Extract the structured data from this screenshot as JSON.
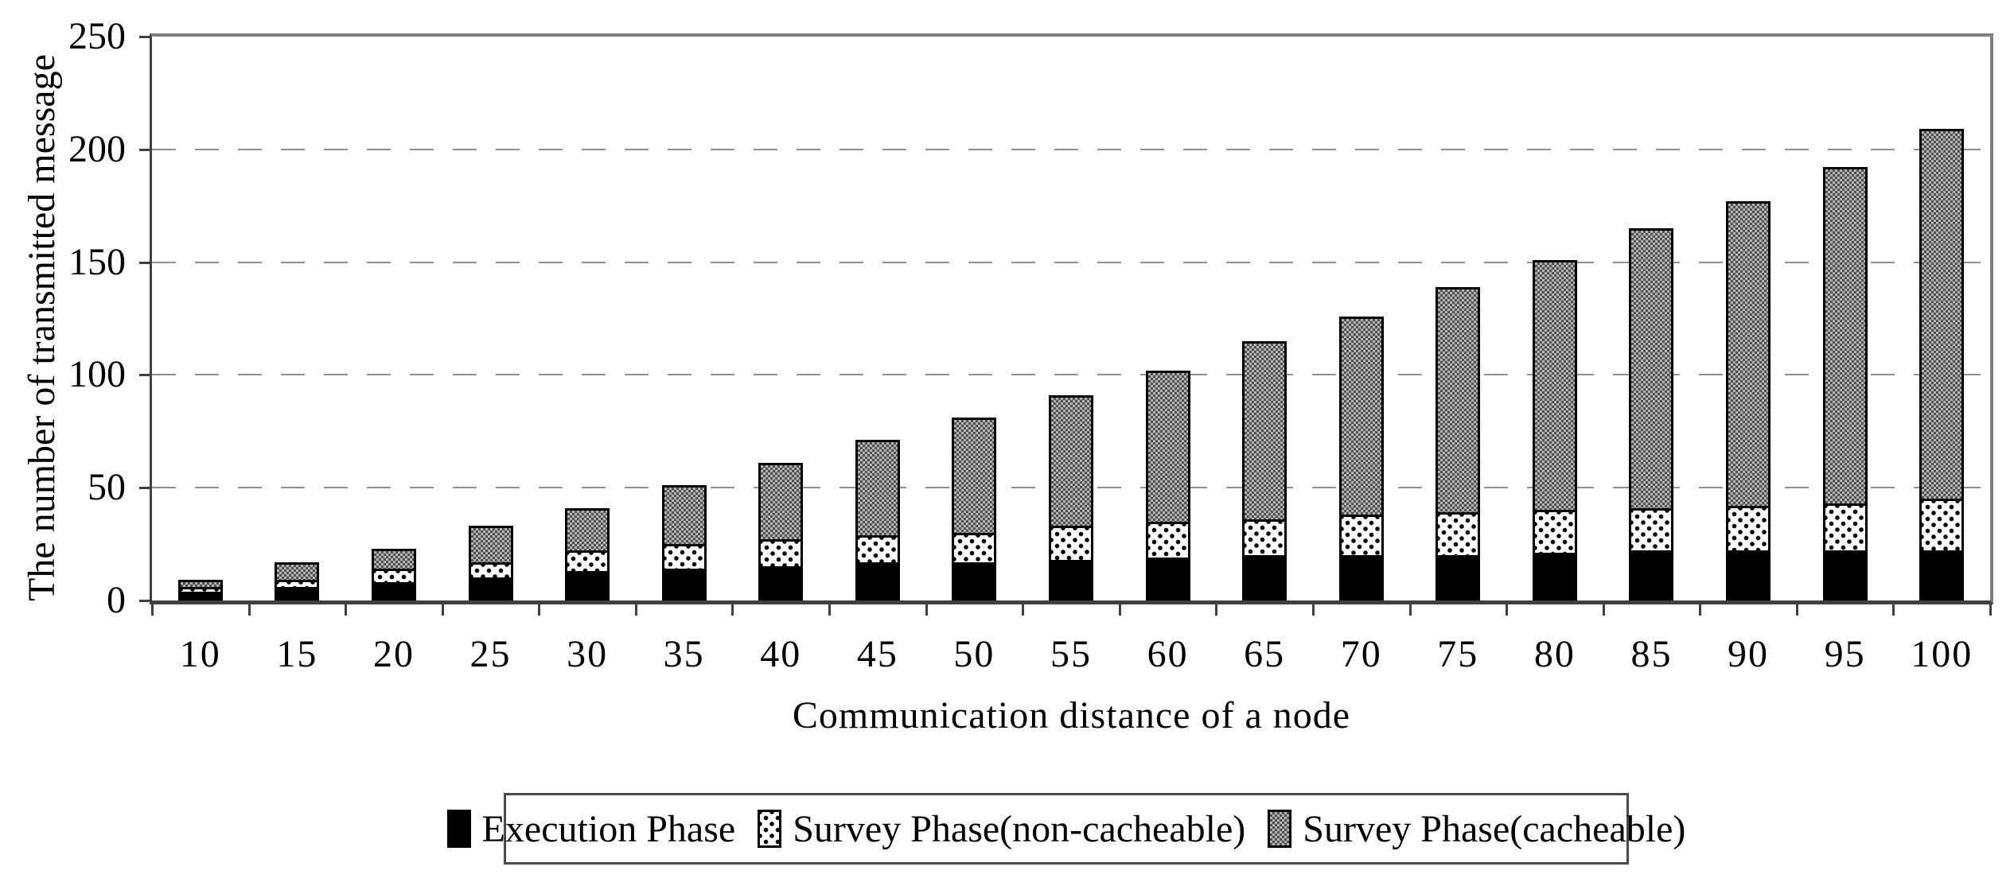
{
  "figure": {
    "background": "#ffffff"
  },
  "chart_data": {
    "type": "bar",
    "stacked": true,
    "title": "",
    "xlabel": "Communication distance of a node",
    "ylabel": "The number of transmitted message",
    "categories": [
      "10",
      "15",
      "20",
      "25",
      "30",
      "35",
      "40",
      "45",
      "50",
      "55",
      "60",
      "65",
      "70",
      "75",
      "80",
      "85",
      "90",
      "95",
      "100"
    ],
    "series": [
      {
        "name": "Execution Phase",
        "pattern": "solid-black",
        "values": [
          3,
          5,
          7,
          9,
          12,
          13,
          14,
          16,
          16,
          17,
          18,
          19,
          19,
          19,
          20,
          21,
          21,
          21,
          21
        ]
      },
      {
        "name": "Survey Phase(non-cacheable)",
        "pattern": "black-dots-on-white",
        "values": [
          2,
          3,
          6,
          7,
          9,
          11,
          12,
          12,
          13,
          15,
          16,
          16,
          18,
          19,
          19,
          19,
          20,
          21,
          23
        ]
      },
      {
        "name": "Survey Phase(cacheable)",
        "pattern": "gray-checker",
        "values": [
          3,
          8,
          9,
          16,
          19,
          26,
          34,
          42,
          51,
          58,
          67,
          79,
          88,
          100,
          111,
          124,
          135,
          149,
          164
        ]
      }
    ],
    "stack_totals": [
      8,
      16,
      22,
      32,
      40,
      50,
      60,
      70,
      80,
      90,
      101,
      114,
      125,
      138,
      150,
      164,
      176,
      191,
      208
    ],
    "ylim": [
      0,
      250
    ],
    "yticks": [
      0,
      50,
      100,
      150,
      200,
      250
    ],
    "grid": "dashed horizontal at 50,100,150,200",
    "legend_position": "bottom"
  },
  "colors": {
    "bar_border": "#000000",
    "execution_fill": "#000000",
    "noncacheable_dot": "#000000",
    "noncacheable_bg": "#ffffff",
    "cacheable_dark": "#515151",
    "cacheable_light": "#b2b2b2",
    "gridline": "#909090",
    "axis_line": "#404040",
    "plot_border": "#7f7f7f",
    "text": "#000000"
  }
}
